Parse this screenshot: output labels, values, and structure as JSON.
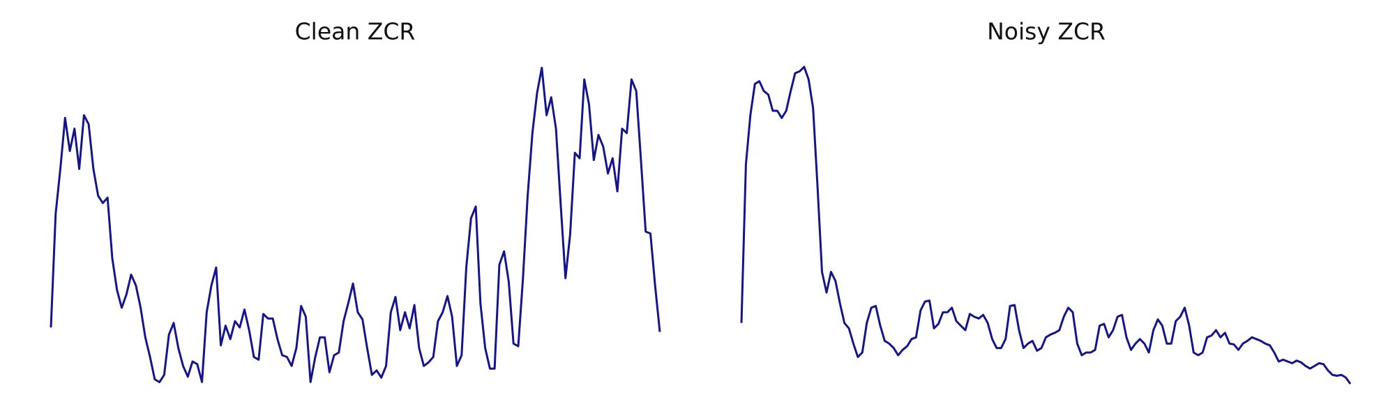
{
  "chart_data": [
    {
      "type": "line",
      "title": "Clean ZCR",
      "color": "#14148c",
      "values": [
        0.073,
        0.2,
        0.25,
        0.307,
        0.27,
        0.295,
        0.25,
        0.31,
        0.3,
        0.25,
        0.22,
        0.212,
        0.218,
        0.15,
        0.115,
        0.095,
        0.11,
        0.132,
        0.12,
        0.095,
        0.062,
        0.04,
        0.015,
        0.012,
        0.02,
        0.065,
        0.078,
        0.05,
        0.03,
        0.018,
        0.035,
        0.032,
        0.012,
        0.09,
        0.12,
        0.14,
        0.053,
        0.075,
        0.06,
        0.08,
        0.073,
        0.093,
        0.07,
        0.04,
        0.037,
        0.088,
        0.083,
        0.083,
        0.06,
        0.042,
        0.04,
        0.03,
        0.05,
        0.097,
        0.085,
        0.012,
        0.04,
        0.062,
        0.062,
        0.023,
        0.042,
        0.045,
        0.08,
        0.1,
        0.122,
        0.09,
        0.082,
        0.05,
        0.02,
        0.025,
        0.017,
        0.03,
        0.09,
        0.107,
        0.07,
        0.09,
        0.072,
        0.098,
        0.05,
        0.03,
        0.034,
        0.04,
        0.08,
        0.09,
        0.108,
        0.085,
        0.03,
        0.042,
        0.14,
        0.195,
        0.208,
        0.1,
        0.05,
        0.027,
        0.027,
        0.143,
        0.158,
        0.124,
        0.055,
        0.052,
        0.127,
        0.22,
        0.29,
        0.335,
        0.363,
        0.31,
        0.33,
        0.295,
        0.21,
        0.128,
        0.177,
        0.268,
        0.262,
        0.35,
        0.322,
        0.26,
        0.288,
        0.275,
        0.245,
        0.262,
        0.225,
        0.295,
        0.29,
        0.35,
        0.337,
        0.26,
        0.18,
        0.178,
        0.12,
        0.068
      ]
    },
    {
      "type": "line",
      "title": "Noisy ZCR",
      "color": "#14148c",
      "values": [
        0.078,
        0.255,
        0.31,
        0.345,
        0.348,
        0.337,
        0.333,
        0.315,
        0.315,
        0.307,
        0.315,
        0.337,
        0.357,
        0.359,
        0.364,
        0.35,
        0.318,
        0.23,
        0.135,
        0.112,
        0.135,
        0.125,
        0.1,
        0.078,
        0.072,
        0.055,
        0.04,
        0.045,
        0.078,
        0.095,
        0.097,
        0.075,
        0.058,
        0.055,
        0.05,
        0.042,
        0.048,
        0.052,
        0.06,
        0.062,
        0.092,
        0.102,
        0.103,
        0.072,
        0.077,
        0.09,
        0.09,
        0.095,
        0.08,
        0.075,
        0.07,
        0.088,
        0.085,
        0.083,
        0.087,
        0.078,
        0.06,
        0.05,
        0.05,
        0.06,
        0.097,
        0.098,
        0.07,
        0.05,
        0.055,
        0.058,
        0.047,
        0.05,
        0.062,
        0.065,
        0.067,
        0.07,
        0.085,
        0.095,
        0.09,
        0.055,
        0.042,
        0.045,
        0.045,
        0.048,
        0.075,
        0.077,
        0.062,
        0.07,
        0.085,
        0.087,
        0.062,
        0.048,
        0.055,
        0.06,
        0.055,
        0.045,
        0.07,
        0.082,
        0.075,
        0.055,
        0.055,
        0.08,
        0.085,
        0.095,
        0.075,
        0.045,
        0.042,
        0.045,
        0.062,
        0.064,
        0.07,
        0.062,
        0.067,
        0.055,
        0.054,
        0.048,
        0.055,
        0.058,
        0.062,
        0.06,
        0.058,
        0.055,
        0.053,
        0.045,
        0.035,
        0.037,
        0.035,
        0.033,
        0.036,
        0.034,
        0.03,
        0.027,
        0.03,
        0.033,
        0.032,
        0.025,
        0.02,
        0.019,
        0.02,
        0.017,
        0.01
      ]
    }
  ]
}
